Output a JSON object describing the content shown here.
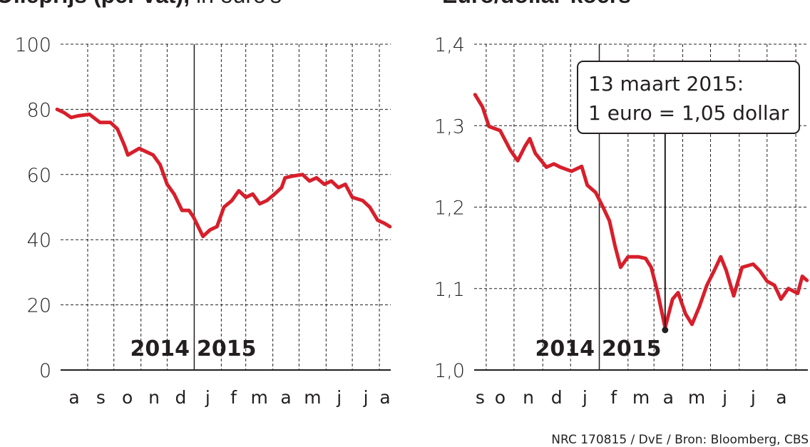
{
  "source": "NRC 170815 / DvE / Bron: Bloomberg, CBS",
  "colors": {
    "line": "#d71f2b",
    "text": "#231f20",
    "grid": "#231f20"
  },
  "chart_data": [
    {
      "type": "line",
      "title": "Olieprijs (per vat),",
      "subtitle": "in euro's",
      "ylim": [
        0,
        100
      ],
      "yticks": [
        0,
        20,
        40,
        60,
        80,
        100
      ],
      "ytick_labels": [
        "0",
        "20",
        "40",
        "60",
        "80",
        "100"
      ],
      "xlim": [
        "2014-08-01",
        "2015-08-14"
      ],
      "month_labels": [
        "a",
        "s",
        "o",
        "n",
        "d",
        "j",
        "f",
        "m",
        "a",
        "m",
        "j",
        "j",
        "a"
      ],
      "year_labels": [
        "2014",
        "2015"
      ],
      "year_boundary": "2015-01-01",
      "grid": true,
      "points": [
        [
          "2014-07-28",
          80
        ],
        [
          "2014-08-05",
          79
        ],
        [
          "2014-08-13",
          77.5
        ],
        [
          "2014-08-21",
          78
        ],
        [
          "2014-09-03",
          78.5
        ],
        [
          "2014-09-15",
          76
        ],
        [
          "2014-09-27",
          76
        ],
        [
          "2014-10-05",
          74
        ],
        [
          "2014-10-13",
          69
        ],
        [
          "2014-10-17",
          66
        ],
        [
          "2014-10-30",
          68
        ],
        [
          "2014-11-07",
          67
        ],
        [
          "2014-11-15",
          66
        ],
        [
          "2014-11-23",
          63
        ],
        [
          "2014-12-01",
          57
        ],
        [
          "2014-12-09",
          54
        ],
        [
          "2014-12-18",
          49
        ],
        [
          "2014-12-26",
          49
        ],
        [
          "2014-12-31",
          47
        ],
        [
          "2015-01-11",
          41
        ],
        [
          "2015-01-19",
          43
        ],
        [
          "2015-01-27",
          44
        ],
        [
          "2015-02-04",
          50
        ],
        [
          "2015-02-13",
          52
        ],
        [
          "2015-02-21",
          55
        ],
        [
          "2015-03-01",
          53
        ],
        [
          "2015-03-09",
          54
        ],
        [
          "2015-03-17",
          51
        ],
        [
          "2015-03-25",
          52
        ],
        [
          "2015-04-03",
          54
        ],
        [
          "2015-04-11",
          56
        ],
        [
          "2015-04-15",
          59
        ],
        [
          "2015-04-23",
          59.5
        ],
        [
          "2015-05-05",
          60
        ],
        [
          "2015-05-13",
          58
        ],
        [
          "2015-05-21",
          59
        ],
        [
          "2015-05-30",
          57
        ],
        [
          "2015-06-07",
          58
        ],
        [
          "2015-06-15",
          56
        ],
        [
          "2015-06-23",
          57
        ],
        [
          "2015-07-01",
          53
        ],
        [
          "2015-07-13",
          52
        ],
        [
          "2015-07-21",
          50
        ],
        [
          "2015-07-30",
          46
        ],
        [
          "2015-08-07",
          45
        ],
        [
          "2015-08-13",
          44
        ]
      ]
    },
    {
      "type": "line",
      "title": "Euro/dollar-koers",
      "ylim": [
        1.0,
        1.4
      ],
      "yticks": [
        1.0,
        1.1,
        1.2,
        1.3,
        1.4
      ],
      "ytick_labels": [
        "1,0",
        "1,1",
        "1,2",
        "1,3",
        "1,4"
      ],
      "xlim": [
        "2014-08-19",
        "2015-08-14"
      ],
      "month_labels": [
        "s",
        "o",
        "n",
        "d",
        "j",
        "f",
        "m",
        "a",
        "m",
        "j",
        "j",
        "a"
      ],
      "year_labels": [
        "2014",
        "2015"
      ],
      "year_boundary": "2015-01-01",
      "grid": true,
      "annotation": {
        "date": "2015-03-13",
        "value": 1.05,
        "line1": "13 maart 2015:",
        "line2": "1 euro = 1,05 dollar"
      },
      "points": [
        [
          "2014-08-20",
          1.338
        ],
        [
          "2014-08-28",
          1.323
        ],
        [
          "2014-09-04",
          1.299
        ],
        [
          "2014-09-16",
          1.294
        ],
        [
          "2014-09-27",
          1.27
        ],
        [
          "2014-10-05",
          1.257
        ],
        [
          "2014-10-13",
          1.275
        ],
        [
          "2014-10-18",
          1.284
        ],
        [
          "2014-10-24",
          1.266
        ],
        [
          "2014-11-05",
          1.249
        ],
        [
          "2014-11-13",
          1.253
        ],
        [
          "2014-11-20",
          1.249
        ],
        [
          "2014-12-02",
          1.244
        ],
        [
          "2014-12-13",
          1.25
        ],
        [
          "2014-12-19",
          1.227
        ],
        [
          "2014-12-28",
          1.218
        ],
        [
          "2015-01-05",
          1.2
        ],
        [
          "2015-01-12",
          1.183
        ],
        [
          "2015-01-18",
          1.152
        ],
        [
          "2015-01-24",
          1.126
        ],
        [
          "2015-02-01",
          1.139
        ],
        [
          "2015-02-12",
          1.139
        ],
        [
          "2015-02-20",
          1.137
        ],
        [
          "2015-02-26",
          1.126
        ],
        [
          "2015-03-05",
          1.095
        ],
        [
          "2015-03-13",
          1.052
        ],
        [
          "2015-03-21",
          1.087
        ],
        [
          "2015-03-27",
          1.095
        ],
        [
          "2015-04-04",
          1.069
        ],
        [
          "2015-04-11",
          1.056
        ],
        [
          "2015-04-19",
          1.078
        ],
        [
          "2015-04-27",
          1.104
        ],
        [
          "2015-05-05",
          1.122
        ],
        [
          "2015-05-12",
          1.139
        ],
        [
          "2015-05-18",
          1.122
        ],
        [
          "2015-05-26",
          1.091
        ],
        [
          "2015-06-04",
          1.126
        ],
        [
          "2015-06-16",
          1.13
        ],
        [
          "2015-06-23",
          1.122
        ],
        [
          "2015-07-01",
          1.109
        ],
        [
          "2015-07-09",
          1.104
        ],
        [
          "2015-07-16",
          1.087
        ],
        [
          "2015-07-24",
          1.1
        ],
        [
          "2015-08-03",
          1.094
        ],
        [
          "2015-08-08",
          1.115
        ],
        [
          "2015-08-13",
          1.11
        ]
      ]
    }
  ]
}
